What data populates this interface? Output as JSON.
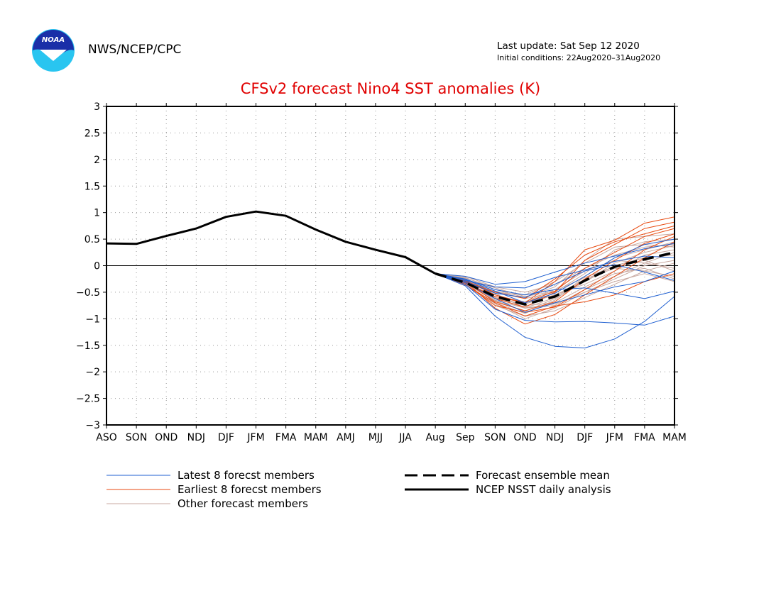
{
  "header": {
    "org": "NWS/NCEP/CPC",
    "last_update": "Last update: Sat Sep 12 2020",
    "initial_conditions": "Initial conditions: 22Aug2020–31Aug2020",
    "logo_text": "NOAA"
  },
  "chart_data": {
    "type": "line",
    "title": "CFSv2 forecast Nino4 SST anomalies (K)",
    "categories": [
      "ASO",
      "SON",
      "OND",
      "NDJ",
      "DJF",
      "JFM",
      "FMA",
      "MAM",
      "AMJ",
      "MJJ",
      "JJA",
      "Aug",
      "Sep",
      "SON",
      "OND",
      "NDJ",
      "DJF",
      "JFM",
      "FMA",
      "MAM"
    ],
    "ylim": [
      -3,
      3
    ],
    "yticks": [
      3,
      2.5,
      2,
      1.5,
      1,
      0.5,
      0,
      -0.5,
      -1,
      -1.5,
      -2,
      -2.5,
      -3
    ],
    "grid": true,
    "zero_line": true,
    "colors": {
      "latest": "#1f5fd0",
      "earliest": "#e84a10",
      "other": "#c8a8a0",
      "analysis": "#000000",
      "mean": "#000000",
      "title": "#e00000"
    },
    "analysis": {
      "name": "NCEP NSST daily analysis",
      "start_index": 0,
      "values": [
        0.42,
        0.41,
        0.56,
        0.7,
        0.92,
        1.02,
        0.94,
        0.68,
        0.45,
        0.3,
        0.16,
        -0.15
      ]
    },
    "ensemble_mean": {
      "name": "Forecast ensemble mean",
      "start_index": 11,
      "values": [
        -0.15,
        -0.32,
        -0.58,
        -0.73,
        -0.58,
        -0.28,
        -0.02,
        0.12,
        0.25
      ]
    },
    "members": {
      "start_index": 11,
      "latest": [
        [
          -0.15,
          -0.38,
          -0.95,
          -1.35,
          -1.52,
          -1.55,
          -1.38,
          -1.05,
          -0.58
        ],
        [
          -0.15,
          -0.35,
          -0.82,
          -1.03,
          -1.06,
          -1.05,
          -1.08,
          -1.12,
          -0.95
        ],
        [
          -0.15,
          -0.25,
          -0.45,
          -0.55,
          -0.45,
          -0.42,
          -0.52,
          -0.62,
          -0.48
        ],
        [
          -0.15,
          -0.2,
          -0.35,
          -0.3,
          -0.12,
          0.05,
          0.18,
          0.32,
          0.42
        ],
        [
          -0.15,
          -0.3,
          -0.52,
          -0.6,
          -0.35,
          -0.1,
          0.02,
          -0.12,
          -0.28
        ],
        [
          -0.15,
          -0.28,
          -0.4,
          -0.42,
          -0.22,
          -0.08,
          0.08,
          0.18,
          0.15
        ],
        [
          -0.15,
          -0.32,
          -0.62,
          -0.88,
          -0.7,
          -0.55,
          -0.4,
          -0.3,
          -0.1
        ],
        [
          -0.15,
          -0.26,
          -0.48,
          -0.7,
          -0.52,
          -0.2,
          0.15,
          0.4,
          0.5
        ]
      ],
      "earliest": [
        [
          -0.15,
          -0.3,
          -0.8,
          -1.1,
          -0.92,
          -0.55,
          -0.2,
          0.15,
          0.45
        ],
        [
          -0.15,
          -0.35,
          -0.75,
          -0.88,
          -0.78,
          -0.45,
          -0.1,
          0.3,
          0.55
        ],
        [
          -0.15,
          -0.28,
          -0.55,
          -0.7,
          -0.3,
          0.3,
          0.48,
          0.8,
          0.92
        ],
        [
          -0.15,
          -0.32,
          -0.62,
          -0.78,
          -0.5,
          0.1,
          0.4,
          0.7,
          0.82
        ],
        [
          -0.15,
          -0.3,
          -0.68,
          -0.85,
          -0.68,
          -0.25,
          0.1,
          0.42,
          0.6
        ],
        [
          -0.15,
          -0.33,
          -0.58,
          -0.7,
          -0.48,
          -0.05,
          0.25,
          0.55,
          0.7
        ],
        [
          -0.15,
          -0.36,
          -0.7,
          -0.95,
          -0.76,
          -0.68,
          -0.55,
          -0.3,
          -0.15
        ],
        [
          -0.15,
          -0.29,
          -0.5,
          -0.62,
          -0.25,
          0.2,
          0.45,
          0.6,
          0.75
        ]
      ],
      "other": [
        [
          -0.15,
          -0.2,
          -0.4,
          -0.5,
          -0.35,
          -0.05,
          0.2,
          0.35,
          0.4
        ],
        [
          -0.15,
          -0.25,
          -0.55,
          -0.7,
          -0.55,
          -0.3,
          0.0,
          0.15,
          0.2
        ],
        [
          -0.15,
          -0.3,
          -0.65,
          -0.8,
          -0.6,
          -0.25,
          -0.05,
          -0.1,
          -0.2
        ],
        [
          -0.15,
          -0.35,
          -0.75,
          -0.95,
          -0.85,
          -0.6,
          -0.35,
          -0.1,
          0.05
        ],
        [
          -0.15,
          -0.22,
          -0.45,
          -0.6,
          -0.4,
          0.1,
          0.5,
          0.55,
          0.6
        ],
        [
          -0.15,
          -0.28,
          -0.5,
          -0.55,
          -0.3,
          0.05,
          0.35,
          0.4,
          0.35
        ],
        [
          -0.15,
          -0.33,
          -0.6,
          -0.75,
          -0.7,
          -0.4,
          -0.15,
          -0.05,
          -0.25
        ],
        [
          -0.15,
          -0.27,
          -0.7,
          -0.9,
          -0.65,
          -0.2,
          0.15,
          0.3,
          0.45
        ],
        [
          -0.15,
          -0.31,
          -0.58,
          -0.68,
          -0.45,
          -0.1,
          0.1,
          0.05,
          -0.05
        ],
        [
          -0.15,
          -0.24,
          -0.52,
          -0.8,
          -0.75,
          -0.45,
          -0.2,
          0.05,
          0.25
        ],
        [
          -0.15,
          -0.36,
          -0.72,
          -1.0,
          -0.8,
          -0.5,
          -0.25,
          0.0,
          0.1
        ],
        [
          -0.15,
          -0.26,
          -0.48,
          -0.62,
          -0.5,
          -0.15,
          0.3,
          0.45,
          0.5
        ],
        [
          -0.15,
          -0.29,
          -0.62,
          -0.72,
          -0.55,
          -0.35,
          -0.1,
          0.2,
          0.3
        ],
        [
          -0.15,
          -0.34,
          -0.66,
          -0.86,
          -0.62,
          -0.3,
          0.05,
          0.25,
          0.38
        ],
        [
          -0.15,
          -0.23,
          -0.42,
          -0.58,
          -0.48,
          -0.22,
          -0.02,
          0.1,
          -0.1
        ],
        [
          -0.15,
          -0.3,
          -0.6,
          -0.8,
          -0.72,
          -0.5,
          -0.3,
          -0.15,
          -0.3
        ]
      ]
    },
    "legend": {
      "latest": "Latest 8 forecst members",
      "earliest": "Earliest 8 forecst members",
      "other": "Other forecast members",
      "mean": "Forecast ensemble mean",
      "analysis": "NCEP NSST daily analysis"
    }
  }
}
